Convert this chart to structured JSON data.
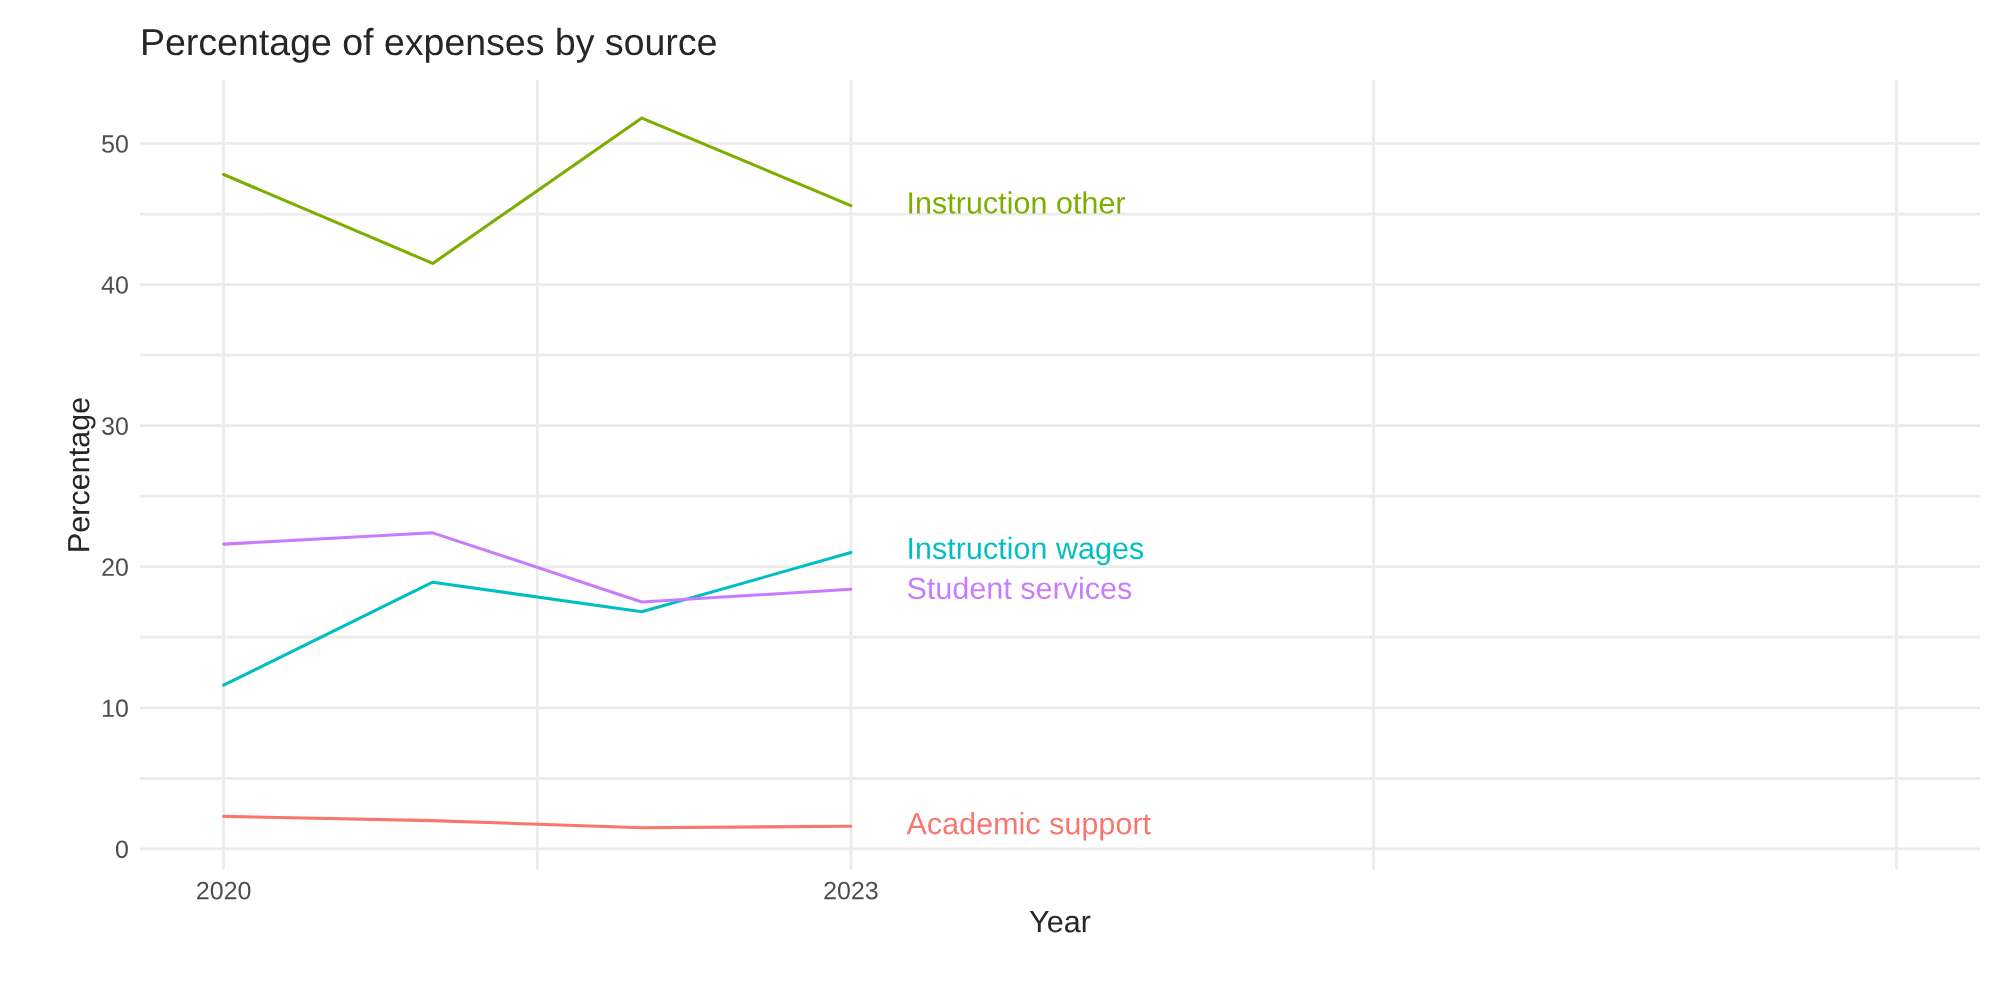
{
  "chart_data": {
    "type": "line",
    "title": "Percentage of expenses by source",
    "xlabel": "Year",
    "ylabel": "Percentage",
    "x": [
      2020,
      2021,
      2022,
      2023
    ],
    "series": [
      {
        "name": "Academic support",
        "color": "#f8766d",
        "values": [
          2.3,
          2.0,
          1.5,
          1.6
        ]
      },
      {
        "name": "Instruction other",
        "color": "#7cae00",
        "values": [
          47.8,
          41.5,
          51.8,
          45.6
        ]
      },
      {
        "name": "Instruction wages",
        "color": "#00bfc4",
        "values": [
          11.6,
          18.9,
          16.8,
          21.0
        ]
      },
      {
        "name": "Student services",
        "color": "#c77cff",
        "values": [
          21.6,
          22.4,
          17.5,
          18.4
        ]
      }
    ],
    "xlim": [
      2019.6,
      2028.4
    ],
    "xticks": [
      2020,
      {
        "value": 2021.5,
        "label": null
      },
      2023,
      {
        "value": 2025.5,
        "label": null
      },
      {
        "value": 2028,
        "label": null
      }
    ],
    "ylim": [
      -1.5,
      54.5
    ],
    "yticks": [
      0,
      {
        "value": 5,
        "label": null
      },
      10,
      {
        "value": 15,
        "label": null
      },
      20,
      {
        "value": 25,
        "label": null
      },
      30,
      {
        "value": 35,
        "label": null
      },
      40,
      {
        "value": 45,
        "label": null
      },
      50
    ],
    "grid": true,
    "legend": false,
    "marker": "none",
    "line_style": "solid"
  }
}
